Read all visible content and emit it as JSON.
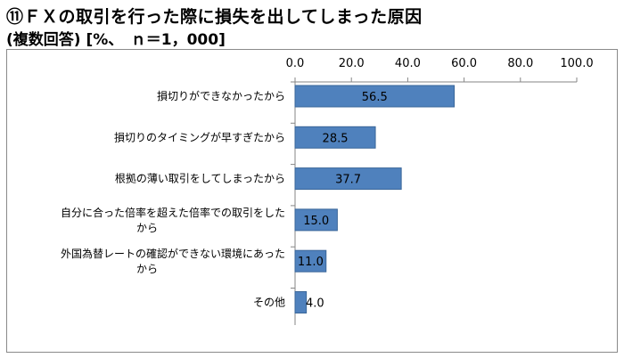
{
  "chart_data": {
    "type": "bar",
    "orientation": "horizontal",
    "title": "⑪ＦＸの取引を行った際に損失を出してしまった原因",
    "subtitle": "(複数回答) [%、　ｎ＝1，000]",
    "categories": [
      [
        "損切りができなかったから"
      ],
      [
        "損切りのタイミングが早すぎたから"
      ],
      [
        "根拠の薄い取引をしてしまったから"
      ],
      [
        "自分に合った倍率を超えた倍率での取引をした",
        "から"
      ],
      [
        "外国為替レートの確認ができない環境にあった",
        "から"
      ],
      [
        "その他"
      ]
    ],
    "values": [
      56.5,
      28.5,
      37.7,
      15.0,
      11.0,
      4.0
    ],
    "value_labels": [
      "56.5",
      "28.5",
      "37.7",
      "15.0",
      "11.0",
      "4.0"
    ],
    "xlim": [
      0,
      100
    ],
    "ticks": [
      "0.0",
      "20.0",
      "40.0",
      "60.0",
      "80.0",
      "100.0"
    ],
    "tick_values": [
      0,
      20,
      40,
      60,
      80,
      100
    ],
    "xaxis_position": "top",
    "grid": false,
    "bar_color": "#4f81bd",
    "bar_edge_color": "#3a6699"
  }
}
